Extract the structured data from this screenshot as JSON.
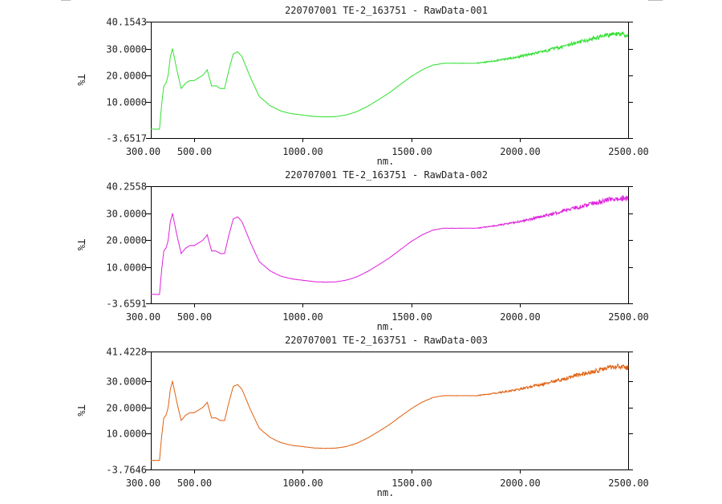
{
  "chart_data": [
    {
      "type": "line",
      "title": "220707001 TE-2_163751 - RawData-001",
      "xlabel": "nm.",
      "ylabel": "T%",
      "xlim": [
        300,
        2500
      ],
      "ylim": [
        -3.6517,
        40.1543
      ],
      "x_ticks": [
        "300.00",
        "500.00",
        "1000.00",
        "1500.00",
        "2000.00",
        "2500.00"
      ],
      "y_ticks": [
        "40.1543",
        "30.0000",
        "20.0000",
        "10.0000",
        "-3.6517"
      ],
      "color": "#33e033",
      "series": [
        {
          "x": [
            300,
            340,
            350,
            360,
            370,
            380,
            390,
            400,
            420,
            440,
            460,
            480,
            500,
            520,
            540,
            560,
            570,
            580,
            600,
            620,
            640,
            660,
            680,
            700,
            720,
            740,
            760,
            800,
            850,
            900,
            950,
            1000,
            1050,
            1100,
            1150,
            1200,
            1250,
            1300,
            1350,
            1400,
            1450,
            1500,
            1550,
            1600,
            1650,
            1700,
            1750,
            1800,
            1850,
            1900,
            1950,
            2000,
            2050,
            2100,
            2150,
            2200,
            2250,
            2300,
            2350,
            2400,
            2450,
            2500
          ],
          "y": [
            -0.3,
            -0.3,
            9,
            16,
            17,
            20,
            27,
            30,
            22,
            15,
            17,
            18,
            18,
            19,
            20,
            22,
            19,
            16,
            16,
            15,
            15,
            22,
            28,
            28.8,
            27,
            23,
            19,
            12,
            8.5,
            6.5,
            5.5,
            5,
            4.5,
            4.3,
            4.4,
            5,
            6.3,
            8.3,
            10.8,
            13.4,
            16.5,
            19.5,
            22,
            23.8,
            24.5,
            24.5,
            24.5,
            24.5,
            25,
            25.6,
            26.3,
            27,
            27.9,
            28.8,
            29.8,
            30.8,
            32,
            32.9,
            34,
            35,
            35.5,
            35.2
          ]
        }
      ]
    },
    {
      "type": "line",
      "title": "220707001 TE-2_163751 - RawData-002",
      "xlabel": "nm.",
      "ylabel": "T%",
      "xlim": [
        300,
        2500
      ],
      "ylim": [
        -3.6591,
        40.2558
      ],
      "x_ticks": [
        "300.00",
        "500.00",
        "1000.00",
        "1500.00",
        "2000.00",
        "2500.00"
      ],
      "y_ticks": [
        "40.2558",
        "30.0000",
        "20.0000",
        "10.0000",
        "-3.6591"
      ],
      "color": "#dd22dd",
      "series": [
        {
          "x": [
            300,
            340,
            350,
            360,
            370,
            380,
            390,
            400,
            420,
            440,
            460,
            480,
            500,
            520,
            540,
            560,
            570,
            580,
            600,
            620,
            640,
            660,
            680,
            700,
            720,
            740,
            760,
            800,
            850,
            900,
            950,
            1000,
            1050,
            1100,
            1150,
            1200,
            1250,
            1300,
            1350,
            1400,
            1450,
            1500,
            1550,
            1600,
            1650,
            1700,
            1750,
            1800,
            1850,
            1900,
            1950,
            2000,
            2050,
            2100,
            2150,
            2200,
            2250,
            2300,
            2350,
            2400,
            2450,
            2500
          ],
          "y": [
            -0.3,
            -0.3,
            9,
            16,
            17,
            20,
            27,
            30,
            22,
            15,
            17,
            18,
            18,
            19,
            20,
            22,
            19,
            16,
            16,
            15,
            15,
            22,
            28,
            28.8,
            27,
            23,
            19,
            12,
            8.5,
            6.5,
            5.5,
            5,
            4.5,
            4.3,
            4.4,
            5,
            6.3,
            8.3,
            10.8,
            13.4,
            16.5,
            19.5,
            22,
            23.8,
            24.5,
            24.5,
            24.5,
            24.5,
            25,
            25.6,
            26.3,
            27,
            27.9,
            28.8,
            29.8,
            30.8,
            32,
            32.9,
            34,
            35,
            35.8,
            35.8
          ]
        }
      ]
    },
    {
      "type": "line",
      "title": "220707001 TE-2_163751 - RawData-003",
      "xlabel": "nm.",
      "ylabel": "T%",
      "xlim": [
        300,
        2500
      ],
      "ylim": [
        -3.7646,
        41.4228
      ],
      "x_ticks": [
        "300.00",
        "500.00",
        "1000.00",
        "1500.00",
        "2000.00",
        "2500.00"
      ],
      "y_ticks": [
        "41.4228",
        "30.0000",
        "20.0000",
        "10.0000",
        "-3.7646"
      ],
      "color": "#e06010",
      "series": [
        {
          "x": [
            300,
            340,
            350,
            360,
            370,
            380,
            390,
            400,
            420,
            440,
            460,
            480,
            500,
            520,
            540,
            560,
            570,
            580,
            600,
            620,
            640,
            660,
            680,
            700,
            720,
            740,
            760,
            800,
            850,
            900,
            950,
            1000,
            1050,
            1100,
            1150,
            1200,
            1250,
            1300,
            1350,
            1400,
            1450,
            1500,
            1550,
            1600,
            1650,
            1700,
            1750,
            1800,
            1850,
            1900,
            1950,
            2000,
            2050,
            2100,
            2150,
            2200,
            2250,
            2300,
            2350,
            2400,
            2450,
            2500
          ],
          "y": [
            -0.3,
            -0.3,
            9,
            16,
            17,
            20,
            27,
            30,
            22,
            15,
            17,
            18,
            18,
            19,
            20,
            22,
            19,
            16,
            16,
            15,
            15,
            22,
            28,
            28.8,
            27,
            23,
            19,
            12,
            8.5,
            6.5,
            5.5,
            5,
            4.5,
            4.3,
            4.4,
            5,
            6.3,
            8.3,
            10.8,
            13.4,
            16.5,
            19.5,
            22,
            23.8,
            24.5,
            24.5,
            24.5,
            24.5,
            25,
            25.6,
            26.3,
            27,
            27.9,
            28.8,
            29.8,
            30.8,
            32,
            32.9,
            34,
            35,
            35.6,
            35.2
          ]
        }
      ]
    }
  ]
}
